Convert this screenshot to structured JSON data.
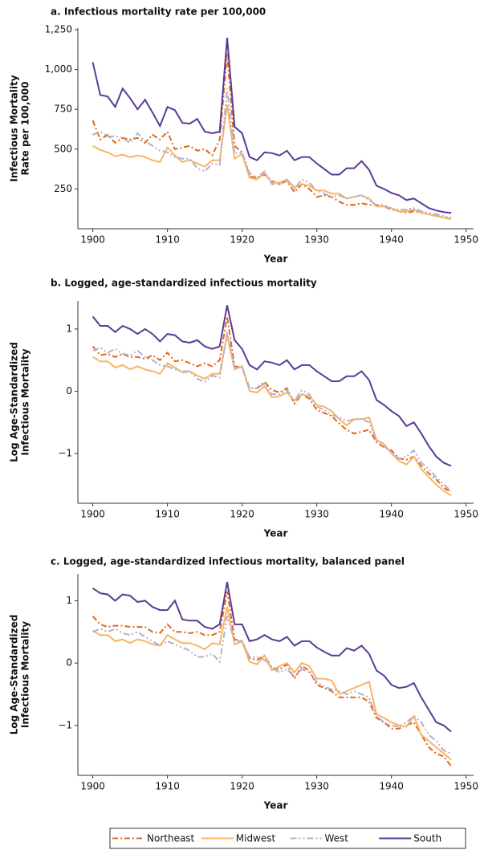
{
  "chart_data": [
    {
      "type": "line",
      "title": "a.  Infectious mortality rate per 100,000",
      "xlabel": "Year",
      "ylabel": [
        "Infectious Mortality",
        "Rate per 100,000"
      ],
      "x": [
        1900,
        1901,
        1902,
        1903,
        1904,
        1905,
        1906,
        1907,
        1908,
        1909,
        1910,
        1911,
        1912,
        1913,
        1914,
        1915,
        1916,
        1917,
        1918,
        1919,
        1920,
        1921,
        1922,
        1923,
        1924,
        1925,
        1926,
        1927,
        1928,
        1929,
        1930,
        1931,
        1932,
        1933,
        1934,
        1935,
        1936,
        1937,
        1938,
        1939,
        1940,
        1941,
        1942,
        1943,
        1944,
        1945,
        1946,
        1947,
        1948
      ],
      "xlim": [
        1898,
        1951
      ],
      "xticks": [
        1900,
        1910,
        1920,
        1930,
        1940,
        1950
      ],
      "ylim": [
        0,
        1260
      ],
      "yticks": [
        250,
        500,
        750,
        {
          "value": 1000,
          "label": "1,000"
        },
        {
          "value": 1250,
          "label": "1,250"
        }
      ],
      "series": [
        {
          "name": "Northeast",
          "color": "#e0691e",
          "linestyle": "dashdot",
          "values": [
            680,
            560,
            590,
            540,
            570,
            560,
            570,
            540,
            590,
            560,
            610,
            500,
            510,
            520,
            490,
            500,
            460,
            560,
            1100,
            520,
            480,
            330,
            320,
            340,
            300,
            280,
            300,
            230,
            280,
            250,
            200,
            210,
            200,
            170,
            150,
            150,
            160,
            150,
            150,
            140,
            120,
            110,
            100,
            110,
            100,
            90,
            80,
            70,
            60
          ]
        },
        {
          "name": "Midwest",
          "color": "#f8b563",
          "linestyle": "solid",
          "values": [
            520,
            495,
            480,
            455,
            465,
            450,
            460,
            450,
            430,
            420,
            510,
            460,
            420,
            430,
            410,
            390,
            430,
            430,
            780,
            440,
            470,
            320,
            310,
            350,
            290,
            290,
            310,
            260,
            280,
            270,
            240,
            240,
            220,
            220,
            190,
            200,
            210,
            190,
            140,
            140,
            130,
            110,
            110,
            120,
            100,
            90,
            80,
            70,
            60
          ]
        },
        {
          "name": "West",
          "color": "#b4afd3",
          "linestyle": "dashdotdot",
          "values": [
            590,
            610,
            580,
            580,
            570,
            540,
            600,
            550,
            520,
            490,
            480,
            450,
            440,
            440,
            380,
            360,
            410,
            400,
            880,
            470,
            480,
            350,
            320,
            360,
            280,
            280,
            300,
            250,
            310,
            290,
            240,
            220,
            200,
            210,
            190,
            200,
            210,
            180,
            150,
            150,
            120,
            120,
            120,
            130,
            110,
            100,
            90,
            80,
            70
          ]
        },
        {
          "name": "South",
          "color": "#5b3a96",
          "linestyle": "solid",
          "values": [
            1045,
            840,
            830,
            765,
            880,
            820,
            750,
            810,
            730,
            645,
            765,
            745,
            665,
            660,
            690,
            610,
            600,
            610,
            1200,
            640,
            600,
            450,
            430,
            480,
            475,
            460,
            490,
            430,
            450,
            450,
            410,
            375,
            340,
            340,
            380,
            380,
            425,
            370,
            270,
            250,
            225,
            210,
            180,
            190,
            160,
            130,
            115,
            105,
            100
          ]
        }
      ]
    },
    {
      "type": "line",
      "title": "b. Logged, age-standardized infectious mortality",
      "xlabel": "Year",
      "ylabel": [
        "Log Age-Standardized",
        "Infectious Mortality"
      ],
      "x": [
        1900,
        1901,
        1902,
        1903,
        1904,
        1905,
        1906,
        1907,
        1908,
        1909,
        1910,
        1911,
        1912,
        1913,
        1914,
        1915,
        1916,
        1917,
        1918,
        1919,
        1920,
        1921,
        1922,
        1923,
        1924,
        1925,
        1926,
        1927,
        1928,
        1929,
        1930,
        1931,
        1932,
        1933,
        1934,
        1935,
        1936,
        1937,
        1938,
        1939,
        1940,
        1941,
        1942,
        1943,
        1944,
        1945,
        1946,
        1947,
        1948
      ],
      "xlim": [
        1898,
        1951
      ],
      "xticks": [
        1900,
        1910,
        1920,
        1930,
        1940,
        1950
      ],
      "ylim": [
        -1.8,
        1.45
      ],
      "yticks": [
        {
          "value": -1,
          "label": "−1"
        },
        0,
        1
      ],
      "series": [
        {
          "name": "Northeast",
          "color": "#e0691e",
          "linestyle": "dashdot",
          "values": [
            0.72,
            0.58,
            0.6,
            0.55,
            0.6,
            0.55,
            0.55,
            0.52,
            0.58,
            0.5,
            0.62,
            0.48,
            0.5,
            0.45,
            0.4,
            0.45,
            0.4,
            0.5,
            1.2,
            0.4,
            0.38,
            0.05,
            0.05,
            0.15,
            0.02,
            -0.02,
            0.05,
            -0.2,
            -0.05,
            -0.12,
            -0.3,
            -0.35,
            -0.4,
            -0.52,
            -0.62,
            -0.68,
            -0.65,
            -0.62,
            -0.82,
            -0.9,
            -0.95,
            -1.08,
            -1.1,
            -1.05,
            -1.2,
            -1.32,
            -1.42,
            -1.55,
            -1.62
          ]
        },
        {
          "name": "Midwest",
          "color": "#f8b563",
          "linestyle": "solid",
          "values": [
            0.55,
            0.48,
            0.48,
            0.38,
            0.42,
            0.35,
            0.4,
            0.35,
            0.32,
            0.28,
            0.45,
            0.38,
            0.3,
            0.32,
            0.25,
            0.2,
            0.28,
            0.28,
            0.9,
            0.35,
            0.4,
            0.0,
            -0.02,
            0.08,
            -0.1,
            -0.08,
            -0.02,
            -0.15,
            -0.05,
            -0.08,
            -0.22,
            -0.25,
            -0.32,
            -0.45,
            -0.55,
            -0.45,
            -0.45,
            -0.42,
            -0.78,
            -0.85,
            -1.0,
            -1.12,
            -1.18,
            -1.05,
            -1.25,
            -1.38,
            -1.5,
            -1.6,
            -1.68
          ]
        },
        {
          "name": "West",
          "color": "#b4afd3",
          "linestyle": "dashdotdot",
          "values": [
            0.65,
            0.7,
            0.62,
            0.68,
            0.6,
            0.58,
            0.65,
            0.55,
            0.5,
            0.42,
            0.4,
            0.35,
            0.32,
            0.32,
            0.2,
            0.15,
            0.25,
            0.22,
            0.95,
            0.35,
            0.4,
            0.05,
            0.05,
            0.12,
            -0.05,
            -0.05,
            0.02,
            -0.15,
            0.02,
            -0.05,
            -0.25,
            -0.3,
            -0.38,
            -0.42,
            -0.48,
            -0.45,
            -0.45,
            -0.5,
            -0.8,
            -0.88,
            -0.98,
            -1.08,
            -1.05,
            -0.95,
            -1.15,
            -1.25,
            -1.38,
            -1.5,
            -1.6
          ]
        },
        {
          "name": "South",
          "color": "#5b3a96",
          "linestyle": "solid",
          "values": [
            1.2,
            1.05,
            1.05,
            0.95,
            1.05,
            1.0,
            0.92,
            1.0,
            0.92,
            0.8,
            0.92,
            0.9,
            0.8,
            0.78,
            0.82,
            0.72,
            0.68,
            0.72,
            1.38,
            0.82,
            0.68,
            0.42,
            0.35,
            0.48,
            0.46,
            0.42,
            0.5,
            0.35,
            0.42,
            0.42,
            0.32,
            0.24,
            0.16,
            0.16,
            0.24,
            0.24,
            0.32,
            0.18,
            -0.14,
            -0.22,
            -0.32,
            -0.4,
            -0.56,
            -0.5,
            -0.68,
            -0.88,
            -1.05,
            -1.15,
            -1.2
          ]
        }
      ]
    },
    {
      "type": "line",
      "title": "c. Logged, age-standardized infectious mortality, balanced panel",
      "xlabel": "Year",
      "ylabel": [
        "Log Age-Standardized",
        "Infectious Mortality"
      ],
      "x": [
        1900,
        1901,
        1902,
        1903,
        1904,
        1905,
        1906,
        1907,
        1908,
        1909,
        1910,
        1911,
        1912,
        1913,
        1914,
        1915,
        1916,
        1917,
        1918,
        1919,
        1920,
        1921,
        1922,
        1923,
        1924,
        1925,
        1926,
        1927,
        1928,
        1929,
        1930,
        1931,
        1932,
        1933,
        1934,
        1935,
        1936,
        1937,
        1938,
        1939,
        1940,
        1941,
        1942,
        1943,
        1944,
        1945,
        1946,
        1947,
        1948
      ],
      "xlim": [
        1898,
        1951
      ],
      "xticks": [
        1900,
        1910,
        1920,
        1930,
        1940,
        1950
      ],
      "ylim": [
        -1.8,
        1.43
      ],
      "yticks": [
        {
          "value": -1,
          "label": "−1"
        },
        0,
        1
      ],
      "series": [
        {
          "name": "Northeast",
          "color": "#e0691e",
          "linestyle": "dashdot",
          "values": [
            0.75,
            0.62,
            0.58,
            0.6,
            0.6,
            0.58,
            0.58,
            0.58,
            0.5,
            0.48,
            0.62,
            0.5,
            0.5,
            0.48,
            0.5,
            0.45,
            0.45,
            0.5,
            1.15,
            0.38,
            0.35,
            0.08,
            0.05,
            0.12,
            -0.08,
            -0.1,
            -0.02,
            -0.25,
            -0.05,
            -0.12,
            -0.35,
            -0.4,
            -0.45,
            -0.55,
            -0.55,
            -0.55,
            -0.55,
            -0.62,
            -0.88,
            -0.95,
            -1.05,
            -1.05,
            -1.0,
            -0.95,
            -1.15,
            -1.35,
            -1.45,
            -1.5,
            -1.65
          ]
        },
        {
          "name": "Midwest",
          "color": "#f8b563",
          "linestyle": "solid",
          "values": [
            0.52,
            0.45,
            0.45,
            0.35,
            0.38,
            0.32,
            0.38,
            0.35,
            0.3,
            0.28,
            0.45,
            0.38,
            0.32,
            0.32,
            0.28,
            0.22,
            0.32,
            0.3,
            0.9,
            0.3,
            0.35,
            0.02,
            -0.02,
            0.12,
            -0.12,
            -0.05,
            0.0,
            -0.15,
            0.0,
            -0.05,
            -0.25,
            -0.25,
            -0.28,
            -0.5,
            -0.45,
            -0.4,
            -0.35,
            -0.3,
            -0.82,
            -0.88,
            -0.95,
            -1.0,
            -1.02,
            -0.85,
            -1.15,
            -1.25,
            -1.35,
            -1.45,
            -1.55
          ]
        },
        {
          "name": "West",
          "color": "#b4afd3",
          "linestyle": "dashdotdot",
          "values": [
            0.5,
            0.55,
            0.5,
            0.55,
            0.48,
            0.45,
            0.5,
            0.42,
            0.35,
            0.28,
            0.35,
            0.3,
            0.25,
            0.2,
            0.1,
            0.1,
            0.15,
            0.02,
            0.75,
            0.35,
            0.35,
            0.1,
            0.1,
            0.05,
            -0.08,
            -0.15,
            -0.1,
            -0.22,
            -0.1,
            -0.15,
            -0.3,
            -0.38,
            -0.42,
            -0.45,
            -0.5,
            -0.45,
            -0.5,
            -0.55,
            -0.85,
            -0.95,
            -1.0,
            -1.02,
            -0.95,
            -0.85,
            -0.95,
            -1.15,
            -1.25,
            -1.4,
            -1.45
          ]
        },
        {
          "name": "South",
          "color": "#5b3a96",
          "linestyle": "solid",
          "values": [
            1.2,
            1.12,
            1.1,
            1.0,
            1.1,
            1.08,
            0.98,
            1.0,
            0.9,
            0.85,
            0.85,
            1.0,
            0.7,
            0.68,
            0.68,
            0.58,
            0.55,
            0.62,
            1.3,
            0.62,
            0.62,
            0.35,
            0.38,
            0.45,
            0.38,
            0.35,
            0.42,
            0.28,
            0.35,
            0.35,
            0.25,
            0.18,
            0.12,
            0.12,
            0.24,
            0.2,
            0.28,
            0.15,
            -0.12,
            -0.2,
            -0.35,
            -0.4,
            -0.38,
            -0.32,
            -0.55,
            -0.75,
            -0.95,
            -1.0,
            -1.1
          ]
        }
      ]
    }
  ]
}
